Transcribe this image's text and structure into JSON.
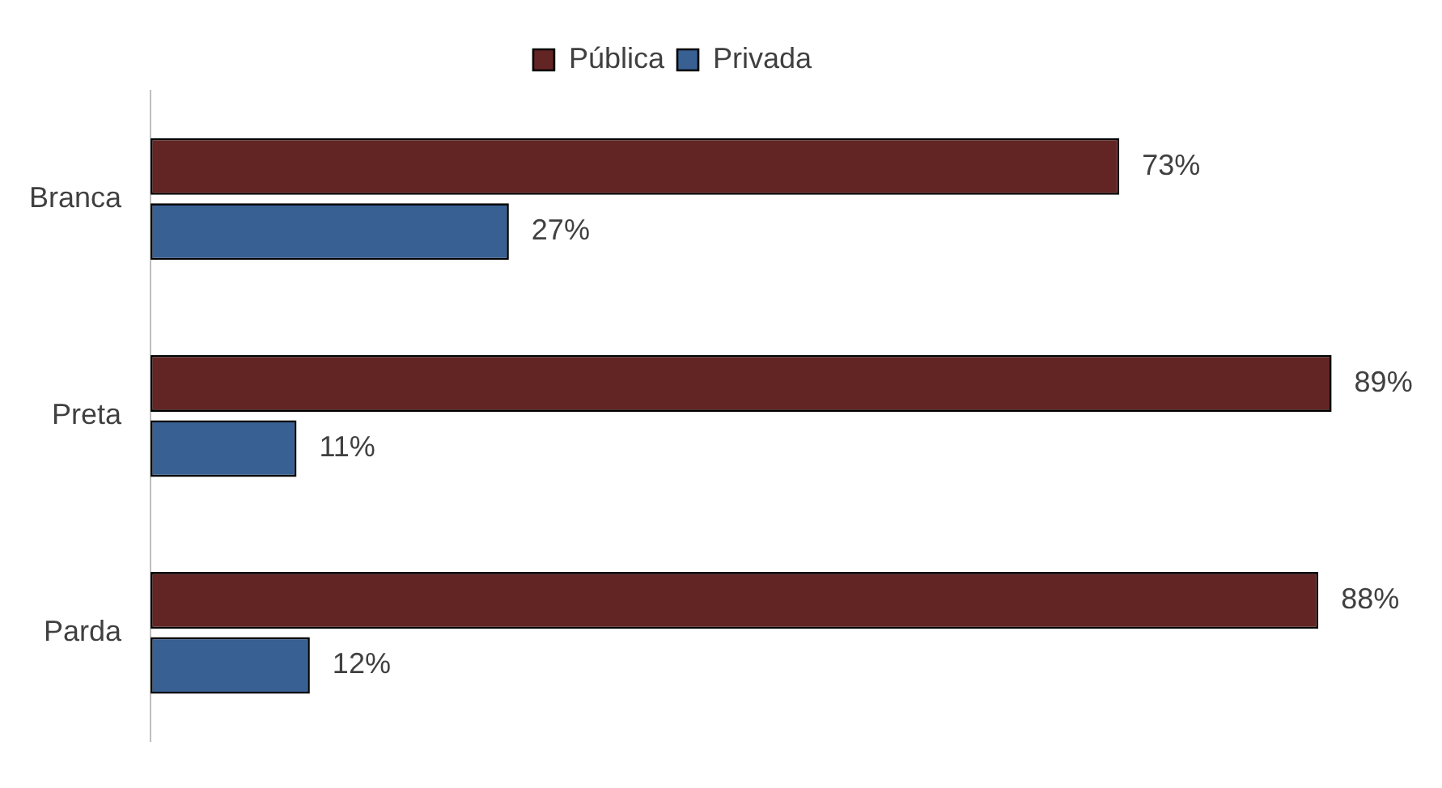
{
  "chart_data": {
    "type": "bar",
    "orientation": "horizontal",
    "categories": [
      "Branca",
      "Preta",
      "Parda"
    ],
    "series": [
      {
        "name": "Pública",
        "color": "#632523",
        "values": [
          73,
          89,
          88
        ],
        "value_labels": [
          "73%",
          "89%",
          "88%"
        ]
      },
      {
        "name": "Privada",
        "color": "#386092",
        "values": [
          27,
          11,
          12
        ],
        "value_labels": [
          "27%",
          "11%",
          "12%"
        ]
      }
    ],
    "legend": "top",
    "grid": false
  }
}
